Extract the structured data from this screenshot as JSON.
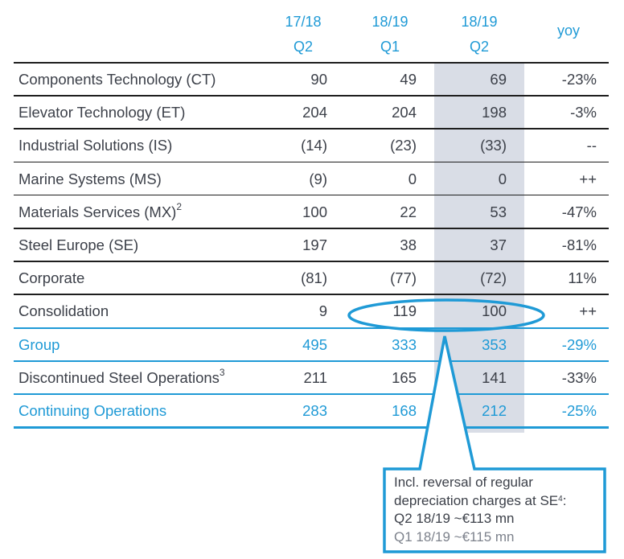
{
  "header": {
    "columns": [
      {
        "line1": "17/18",
        "line2": "Q2"
      },
      {
        "line1": "18/19",
        "line2": "Q1"
      },
      {
        "line1": "18/19",
        "line2": "Q2"
      }
    ],
    "yoy_label": "yoy"
  },
  "rows": [
    {
      "label": "Components Technology (CT)",
      "sup": "",
      "values": [
        "90",
        "49",
        "69",
        "-23%"
      ],
      "highlight": false
    },
    {
      "label": "Elevator Technology (ET)",
      "sup": "",
      "values": [
        "204",
        "204",
        "198",
        "-3%"
      ],
      "highlight": false
    },
    {
      "label": "Industrial Solutions (IS)",
      "sup": "",
      "values": [
        "(14)",
        "(23)",
        "(33)",
        "--"
      ],
      "highlight": false
    },
    {
      "label": "Marine Systems (MS)",
      "sup": "",
      "values": [
        "(9)",
        "0",
        "0",
        "++"
      ],
      "highlight": false
    },
    {
      "label": "Materials Services (MX)",
      "sup": "2",
      "values": [
        "100",
        "22",
        "53",
        "-47%"
      ],
      "highlight": false
    },
    {
      "label": "Steel Europe (SE)",
      "sup": "",
      "values": [
        "197",
        "38",
        "37",
        "-81%"
      ],
      "highlight": false
    },
    {
      "label": "Corporate",
      "sup": "",
      "values": [
        "(81)",
        "(77)",
        "(72)",
        "11%"
      ],
      "highlight": false
    },
    {
      "label": "Consolidation",
      "sup": "",
      "values": [
        "9",
        "119",
        "100",
        "++"
      ],
      "highlight": false
    },
    {
      "label": "Group",
      "sup": "",
      "values": [
        "495",
        "333",
        "353",
        "-29%"
      ],
      "highlight": true
    },
    {
      "label": "Discontinued Steel Operations",
      "sup": "3",
      "values": [
        "211",
        "165",
        "141",
        "-33%"
      ],
      "highlight": false
    },
    {
      "label": "Continuing Operations",
      "sup": "",
      "values": [
        "283",
        "168",
        "212",
        "-25%"
      ],
      "highlight": true
    }
  ],
  "callout": {
    "line1": "Incl. reversal of regular",
    "line2": "depreciation charges at SE",
    "line2_sup": "4",
    "line2_suffix": ":",
    "line3": "Q2 18/19 ~€113 mn",
    "line4": "Q1 18/19 ~€115 mn"
  },
  "colors": {
    "accent": "#1f9ad6",
    "text": "#3c4049",
    "muted": "#7d828c",
    "shade": "#d9dde6"
  }
}
